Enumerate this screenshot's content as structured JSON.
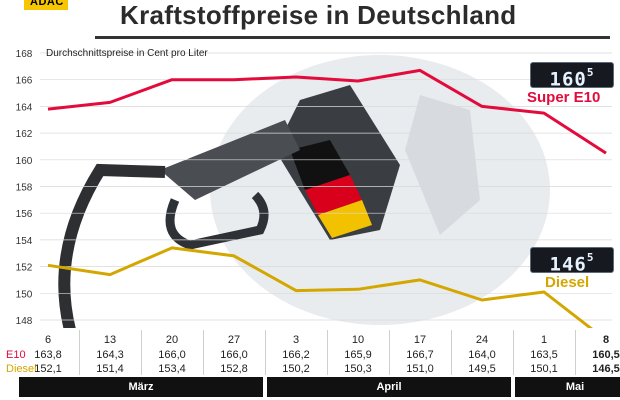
{
  "logo": {
    "text": "ADAC"
  },
  "header": {
    "title": "Kraftstoffpreise in Deutschland"
  },
  "chart_data": {
    "type": "line",
    "title": "Kraftstoffpreise in Deutschland",
    "subtitle": "Durchschnittspreise in Cent pro Liter",
    "ylim": [
      148,
      168
    ],
    "yticks": [
      148,
      150,
      152,
      154,
      156,
      158,
      160,
      162,
      164,
      166,
      168
    ],
    "categories": [
      "6",
      "13",
      "20",
      "27",
      "3",
      "10",
      "17",
      "24",
      "1",
      "8"
    ],
    "months": [
      {
        "name": "März",
        "count": 4
      },
      {
        "name": "April",
        "count": 4
      },
      {
        "name": "Mai",
        "count": 2
      }
    ],
    "series": [
      {
        "name": "E10",
        "line_label": "Super E10",
        "color": "#e30b3c",
        "values": [
          163.8,
          164.3,
          166.0,
          166.0,
          166.2,
          165.9,
          166.7,
          164.0,
          163.5,
          160.5
        ],
        "display": [
          "163,8",
          "164,3",
          "166,0",
          "166,0",
          "166,2",
          "165,9",
          "166,7",
          "164,0",
          "163,5",
          "160,5"
        ],
        "readout": "160",
        "readout_sup": "5"
      },
      {
        "name": "Diesel",
        "line_label": "Diesel",
        "color": "#d4a600",
        "values": [
          152.1,
          151.4,
          153.4,
          152.8,
          150.2,
          150.3,
          151.0,
          149.5,
          150.1,
          146.5
        ],
        "display": [
          "152,1",
          "151,4",
          "153,4",
          "152,8",
          "150,2",
          "150,3",
          "151,0",
          "149,5",
          "150,1",
          "146,5"
        ],
        "readout": "146",
        "readout_sup": "5"
      }
    ],
    "grid": true
  }
}
